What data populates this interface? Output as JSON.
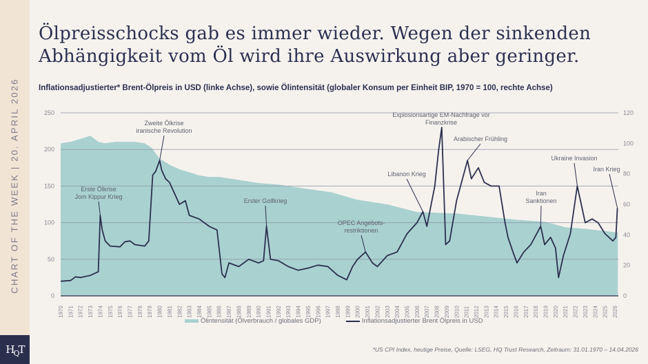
{
  "sidebar": {
    "text": "CHART OF THE WEEK | 20. APRIL 2026",
    "logo": "HQT"
  },
  "header": {
    "title_line1": "Ölpreisschocks gab es immer wieder. Wegen der sinkenden",
    "title_line2": "Abhängigkeit vom Öl wird ihre Auswirkung aber geringer.",
    "subtitle": "Inflationsadjustierter* Brent-Ölpreis in USD (linke Achse), sowie Ölintensität (globaler Konsum per Einheit BIP, 1970 = 100, rechte Achse)"
  },
  "footnote": "*US CPI Index, heutige Preise, Quelle: LSEG, HQ Trust Research, Zeitraum: 31.01.1970 – 14.04.2026",
  "colors": {
    "area": "#a9d1d0",
    "line": "#2b2f4e",
    "grid": "#8f97a8",
    "background": "#f5f2ee",
    "sidebar": "#f2e4d4"
  },
  "chart_data": {
    "type": "line+area",
    "legend_position": "bottom",
    "grid": true,
    "x_ticks": [
      1970,
      1971,
      1972,
      1973,
      1974,
      1975,
      1976,
      1977,
      1978,
      1979,
      1980,
      1981,
      1982,
      1983,
      1984,
      1985,
      1986,
      1987,
      1988,
      1989,
      1990,
      1991,
      1992,
      1993,
      1994,
      1995,
      1996,
      1997,
      1998,
      1999,
      2000,
      2001,
      2002,
      2003,
      2004,
      2005,
      2006,
      2007,
      2008,
      2009,
      2010,
      2011,
      2012,
      2013,
      2014,
      2015,
      2016,
      2017,
      2018,
      2019,
      2020,
      2021,
      2022,
      2023,
      2024,
      2025,
      2026
    ],
    "y_left": {
      "range": [
        0,
        250
      ],
      "ticks": [
        0,
        50,
        100,
        150,
        200,
        250
      ]
    },
    "y_right": {
      "range": [
        0,
        120
      ],
      "ticks": [
        0,
        20,
        40,
        60,
        80,
        100,
        120
      ]
    },
    "series": [
      {
        "name": "Ölintensität (Ölverbrauch / globales GDP)",
        "type": "area",
        "axis": "right",
        "x": [
          1970,
          1971,
          1972,
          1973,
          1973.8,
          1974.5,
          1975.5,
          1976.5,
          1977.5,
          1978.5,
          1979.2,
          1980,
          1981,
          1982,
          1983,
          1984,
          1985,
          1986,
          1987,
          1988,
          1990,
          1992,
          1995,
          1997.3,
          2000,
          2003,
          2006,
          2010,
          2013,
          2016,
          2019,
          2021,
          2023,
          2026.3
        ],
        "y": [
          100,
          101,
          103,
          105,
          101,
          100,
          101,
          101,
          101,
          100,
          97,
          90,
          86,
          83,
          81,
          79,
          78,
          78,
          77,
          76,
          74,
          73,
          70,
          68,
          63,
          60,
          55,
          54,
          52,
          50,
          48.5,
          45,
          44,
          41.5
        ]
      },
      {
        "name": "Inflationsadjustierter Brent Ölpreis in USD",
        "type": "line",
        "axis": "left",
        "x": [
          1970,
          1971,
          1971.5,
          1972,
          1973,
          1973.8,
          1974.0,
          1974.2,
          1974.5,
          1975,
          1976,
          1976.5,
          1977,
          1977.5,
          1978.5,
          1978.9,
          1979.3,
          1979.6,
          1980.0,
          1980.2,
          1980.6,
          1981,
          1981.5,
          1982,
          1982.6,
          1983,
          1984,
          1985,
          1985.8,
          1986.3,
          1986.6,
          1987,
          1988,
          1989,
          1990,
          1990.5,
          1990.8,
          1991.2,
          1992,
          1993,
          1994,
          1995,
          1996,
          1997,
          1998,
          1998.9,
          1999.5,
          2000,
          2000.8,
          2001.5,
          2002,
          2003,
          2004,
          2005,
          2006,
          2006.6,
          2007,
          2007.8,
          2008.2,
          2008.5,
          2008.9,
          2009.3,
          2010,
          2011.1,
          2011.5,
          2012.2,
          2012.8,
          2013.5,
          2014.3,
          2014.9,
          2015.2,
          2015.7,
          2016.1,
          2016.8,
          2017.5,
          2018.5,
          2018.9,
          2019.5,
          2020.0,
          2020.3,
          2020.8,
          2021.5,
          2022.2,
          2022.6,
          2023,
          2023.7,
          2024.3,
          2025,
          2025.8,
          2026.1,
          2026.25
        ],
        "y": [
          20,
          21,
          26,
          25,
          28,
          33,
          110,
          90,
          75,
          68,
          67,
          74,
          75,
          70,
          68,
          75,
          165,
          170,
          185,
          172,
          160,
          155,
          140,
          125,
          130,
          110,
          105,
          95,
          90,
          30,
          25,
          45,
          40,
          50,
          45,
          48,
          95,
          50,
          48,
          40,
          35,
          38,
          42,
          40,
          28,
          22,
          40,
          50,
          60,
          45,
          40,
          55,
          60,
          85,
          100,
          115,
          95,
          150,
          200,
          230,
          70,
          75,
          130,
          185,
          160,
          175,
          155,
          150,
          150,
          100,
          80,
          60,
          45,
          60,
          70,
          95,
          70,
          80,
          65,
          25,
          55,
          85,
          150,
          125,
          100,
          105,
          100,
          85,
          75,
          80,
          120
        ]
      }
    ],
    "annotations": [
      {
        "label": [
          "Erste Ölkrise",
          "Jom Kippur Krieg"
        ],
        "x": 1974.0,
        "y": 110
      },
      {
        "label": [
          "Zweite Ölkrise",
          "iranische Revolution"
        ],
        "x": 1980.0,
        "y": 185
      },
      {
        "label": [
          "Erster Golfkrieg"
        ],
        "x": 1990.8,
        "y": 95
      },
      {
        "label": [
          "OPEC Angebots-",
          "restriktionen"
        ],
        "x": 2000.8,
        "y": 60
      },
      {
        "label": [
          "Libanon Krieg"
        ],
        "x": 2006.6,
        "y": 115
      },
      {
        "label": [
          "Explosionsartige EM-Nachfrage vor",
          "Finanzkrise"
        ],
        "x": 2008.5,
        "y": 230
      },
      {
        "label": [
          "Arabischer Frühling"
        ],
        "x": 2011.1,
        "y": 185
      },
      {
        "label": [
          "Iran",
          "Sanktionen"
        ],
        "x": 2018.5,
        "y": 95
      },
      {
        "label": [
          "Ukraine Invasion"
        ],
        "x": 2022.2,
        "y": 150
      },
      {
        "label": [
          "Iran Krieg"
        ],
        "x": 2026.25,
        "y": 120
      }
    ]
  }
}
